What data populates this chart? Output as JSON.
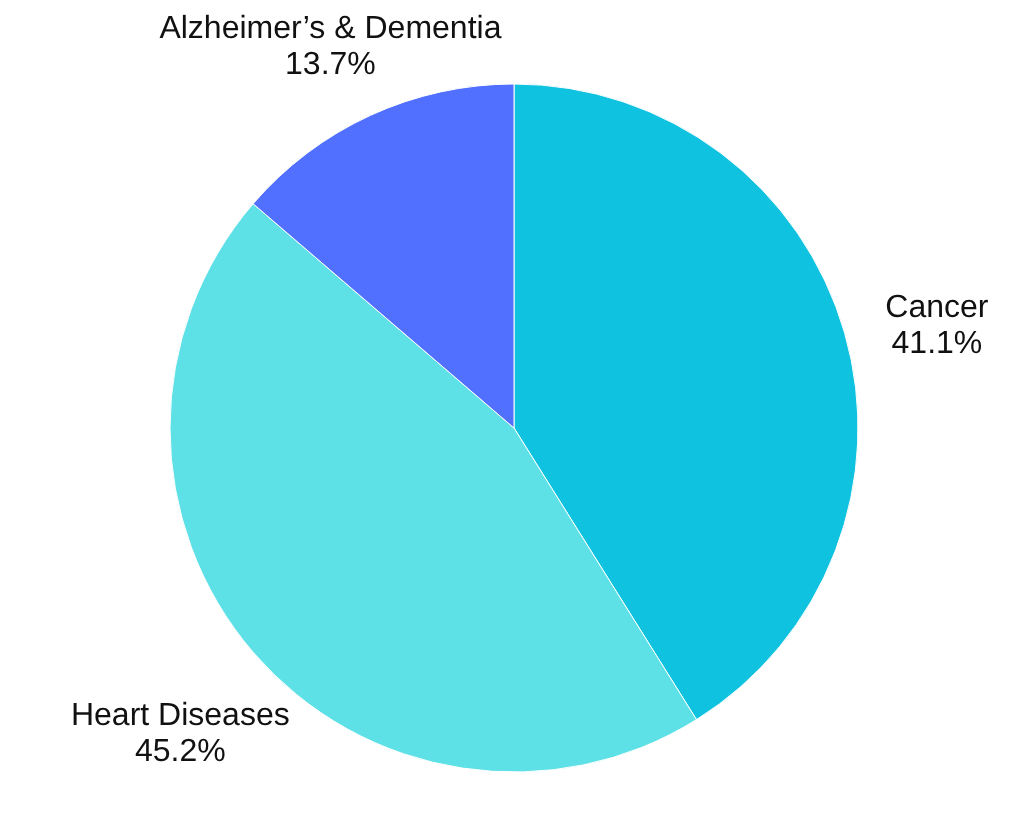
{
  "chart_data": {
    "type": "pie",
    "categories": [
      "Cancer",
      "Heart Diseases",
      "Alzheimer’s & Dementia"
    ],
    "values": [
      41.1,
      45.2,
      13.7
    ],
    "colors": [
      "#0fc2e0",
      "#5ee1e6",
      "#5170ff"
    ],
    "value_labels": [
      "41.1%",
      "45.2%",
      "13.7%"
    ]
  }
}
